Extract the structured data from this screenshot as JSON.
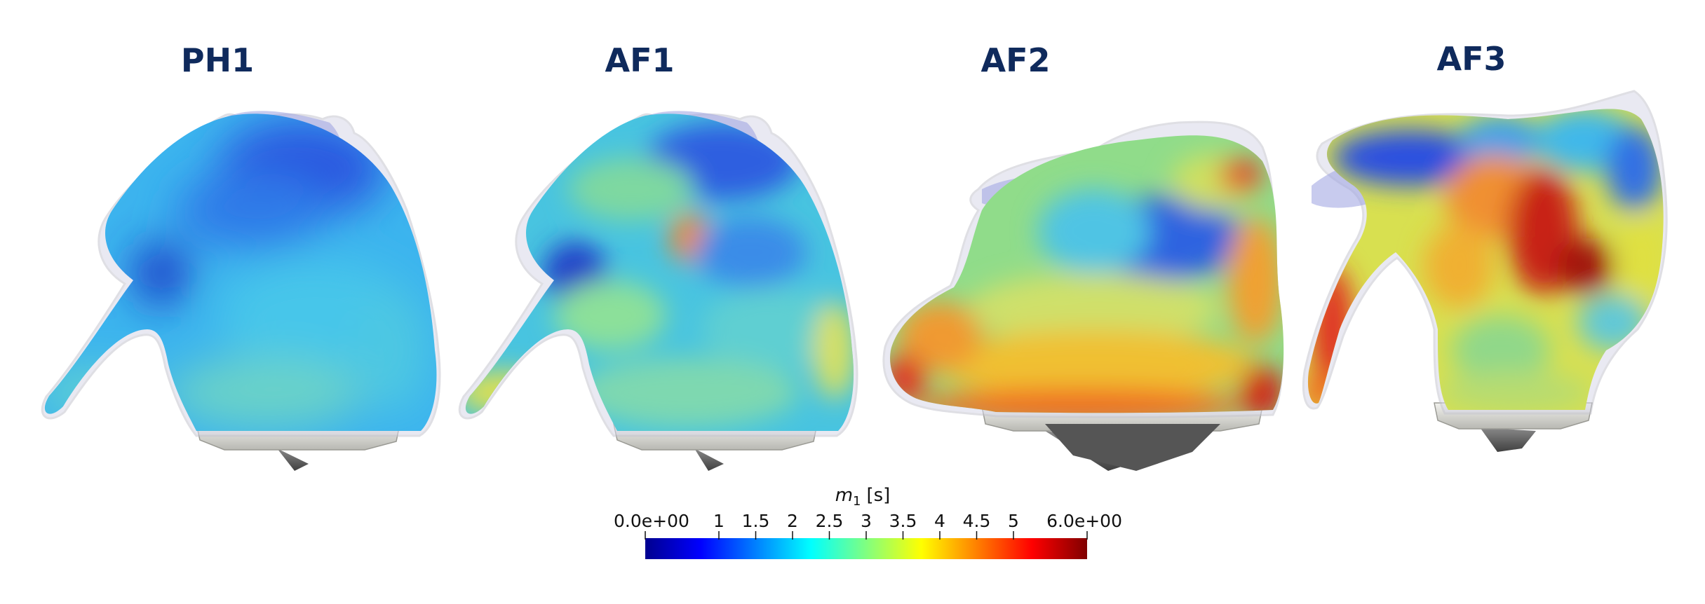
{
  "panels": [
    {
      "id": "ph1",
      "title": "PH1"
    },
    {
      "id": "af1",
      "title": "AF1"
    },
    {
      "id": "af2",
      "title": "AF2"
    },
    {
      "id": "af3",
      "title": "AF3"
    }
  ],
  "colorbar": {
    "title_main": "m",
    "title_sub": "1",
    "title_unit": "[s]",
    "min": 0,
    "max": 6,
    "ticks": [
      {
        "value": 0,
        "label": "0.0e+00"
      },
      {
        "value": 1,
        "label": "1"
      },
      {
        "value": 1.5,
        "label": "1.5"
      },
      {
        "value": 2,
        "label": "2"
      },
      {
        "value": 2.5,
        "label": "2.5"
      },
      {
        "value": 3,
        "label": "3"
      },
      {
        "value": 3.5,
        "label": "3.5"
      },
      {
        "value": 4,
        "label": "4"
      },
      {
        "value": 4.5,
        "label": "4.5"
      },
      {
        "value": 5,
        "label": "5"
      },
      {
        "value": 6,
        "label": "6.0e+00"
      }
    ],
    "colormap": [
      "#00008f",
      "#0000ff",
      "#0080ff",
      "#00ffff",
      "#80ff80",
      "#ffff00",
      "#ff8000",
      "#ff0000",
      "#800000"
    ]
  }
}
